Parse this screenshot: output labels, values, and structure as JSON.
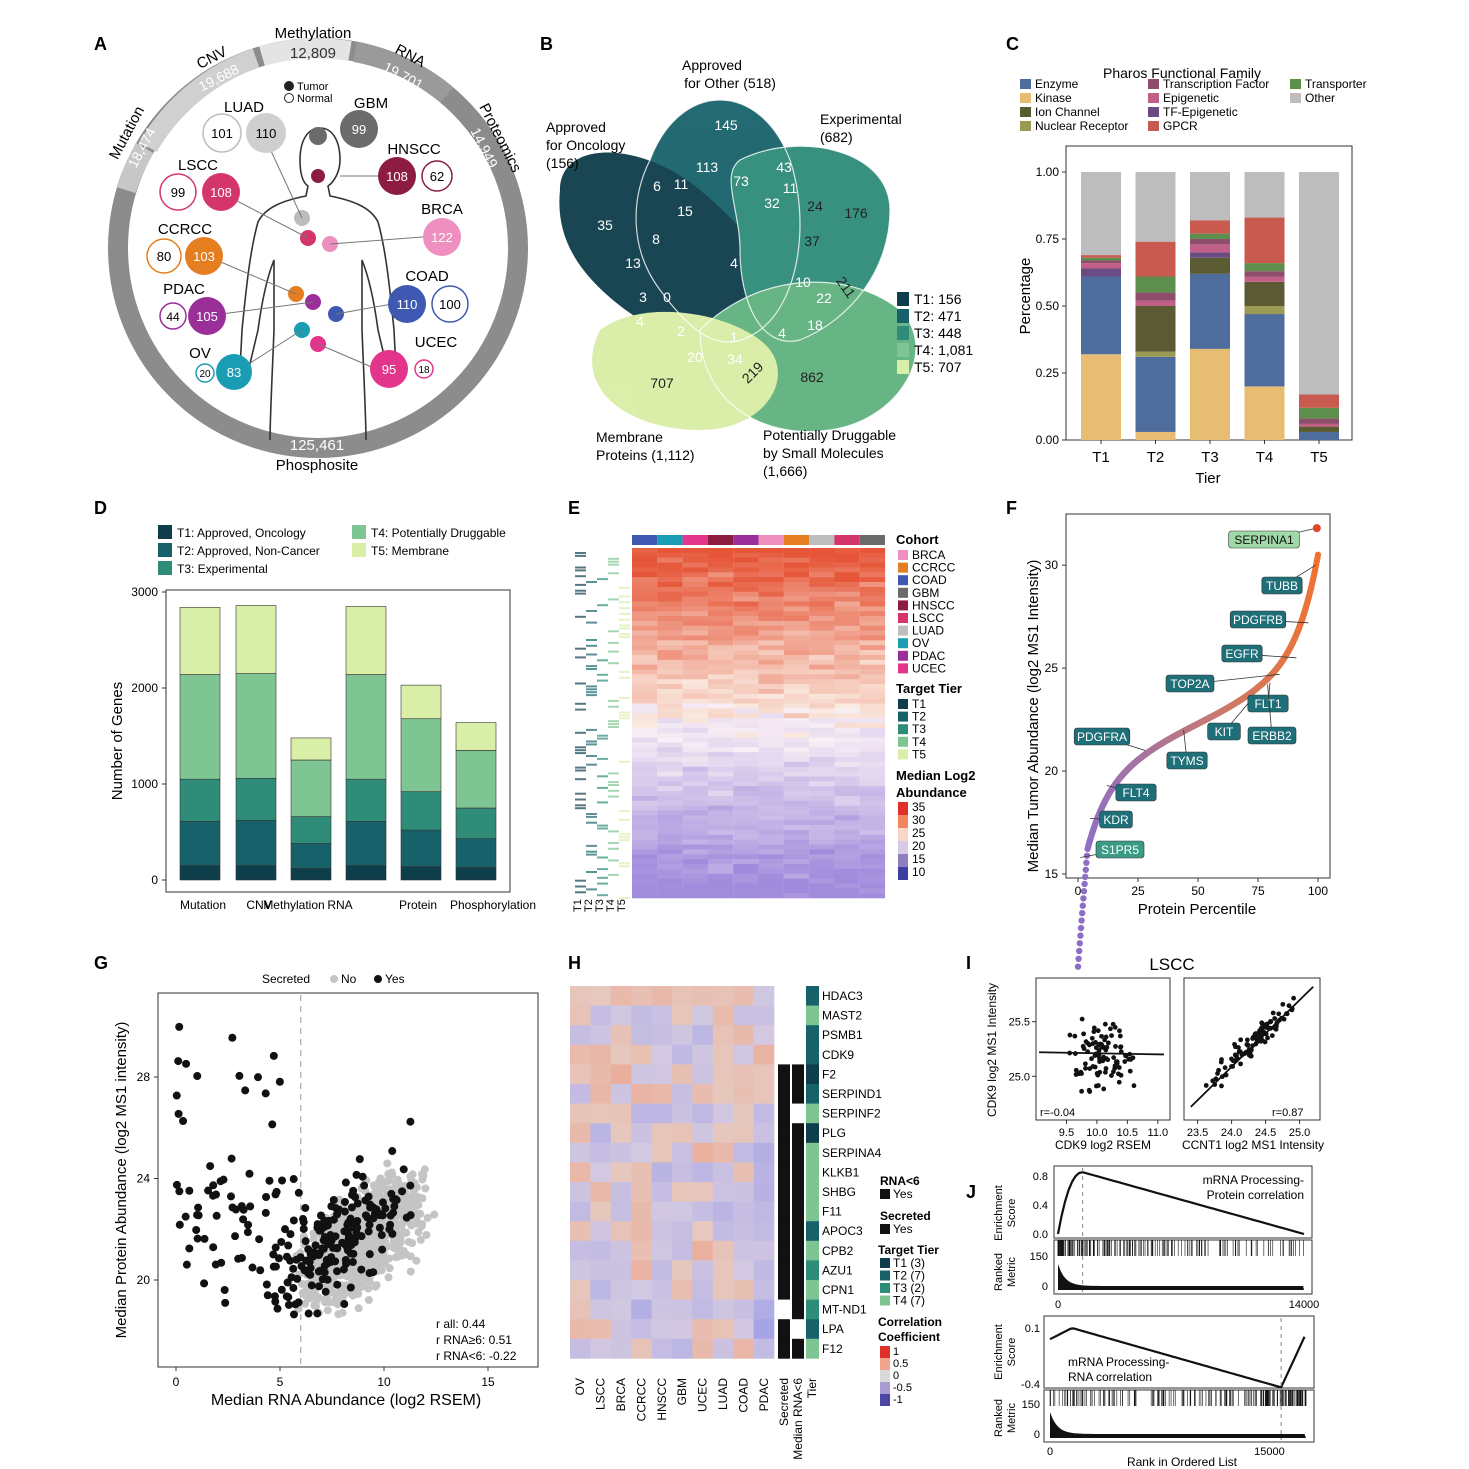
{
  "colors": {
    "T1": "#0e3d4b",
    "T2": "#17626a",
    "T3": "#2e8c78",
    "T4": "#7fc493",
    "T5": "#d9eea6",
    "ring": "#8c8c8c",
    "ringLight": "#cfcfcf",
    "cohort": {
      "BRCA": "#ee8fbf",
      "CCRCC": "#e47e21",
      "COAD": "#3f58b1",
      "GBM": "#6b6b6b",
      "HNSCC": "#8c1d40",
      "LSCC": "#d4366b",
      "LUAD": "#bdbdbd",
      "OV": "#1a9db3",
      "PDAC": "#9a2f9a",
      "UCEC": "#e3358c"
    }
  },
  "panels": {
    "A": {
      "letter": "A",
      "ring_labels": [
        {
          "name": "Methylation",
          "value": "12,809"
        },
        {
          "name": "CNV",
          "value": "19,688"
        },
        {
          "name": "RNA",
          "value": "19,701"
        },
        {
          "name": "Mutation",
          "value": "18,474"
        },
        {
          "name": "Proteomics",
          "value": "14,949"
        },
        {
          "name": "Phosphosite",
          "value": "125,461"
        }
      ],
      "legend": {
        "tumor": "Tumor",
        "normal": "Normal"
      },
      "cohorts": [
        {
          "name": "LUAD",
          "tumor": "110",
          "normal": "101"
        },
        {
          "name": "GBM",
          "tumor": "99",
          "normal": ""
        },
        {
          "name": "HNSCC",
          "tumor": "108",
          "normal": "62"
        },
        {
          "name": "LSCC",
          "tumor": "108",
          "normal": "99"
        },
        {
          "name": "BRCA",
          "tumor": "122",
          "normal": ""
        },
        {
          "name": "CCRCC",
          "tumor": "103",
          "normal": "80"
        },
        {
          "name": "COAD",
          "tumor": "110",
          "normal": "100"
        },
        {
          "name": "PDAC",
          "tumor": "105",
          "normal": "44"
        },
        {
          "name": "UCEC",
          "tumor": "95",
          "normal": "18"
        },
        {
          "name": "OV",
          "tumor": "83",
          "normal": "20"
        }
      ]
    },
    "B": {
      "letter": "B",
      "sets": [
        {
          "label": "Approved",
          "label2": "for Oncology",
          "label3": "(156)"
        },
        {
          "label": "Approved",
          "label2": "for Other (518)"
        },
        {
          "label": "Experimental",
          "label2": "(682)"
        },
        {
          "label": "Potentially Druggable",
          "label2": "by Small Molecules",
          "label3": "(1,666)"
        },
        {
          "label": "Membrane",
          "label2": "Proteins (1,112)"
        }
      ],
      "numbers": [
        "35",
        "145",
        "176",
        "862",
        "707",
        "6",
        "11",
        "113",
        "73",
        "43",
        "11",
        "32",
        "24",
        "15",
        "8",
        "13",
        "4",
        "37",
        "10",
        "22",
        "211",
        "3",
        "0",
        "2",
        "1",
        "4",
        "18",
        "20",
        "34",
        "219"
      ],
      "tiers": [
        "T1: 156",
        "T2: 471",
        "T3: 448",
        "T4: 1,081",
        "T5: 707"
      ]
    },
    "C": {
      "letter": "C",
      "legend_title": "Pharos Functional Family",
      "legend_items": [
        {
          "name": "Enzyme",
          "color": "#4f6d9c"
        },
        {
          "name": "Kinase",
          "color": "#e7bd74"
        },
        {
          "name": "Ion Channel",
          "color": "#5a5a33"
        },
        {
          "name": "Nuclear Receptor",
          "color": "#9b9a55"
        },
        {
          "name": "Transcription Factor",
          "color": "#8e4d6a"
        },
        {
          "name": "Epigenetic",
          "color": "#c25f86"
        },
        {
          "name": "TF-Epigenetic",
          "color": "#6a4b82"
        },
        {
          "name": "GPCR",
          "color": "#c95a4f"
        },
        {
          "name": "Transporter",
          "color": "#5e8e4e"
        },
        {
          "name": "Other",
          "color": "#bdbdbd"
        }
      ]
    },
    "D": {
      "letter": "D",
      "legend": [
        "T1: Approved, Oncology",
        "T2: Approved, Non-Cancer",
        "T3: Experimental",
        "T4: Potentially Druggable",
        "T5: Membrane"
      ]
    },
    "E": {
      "letter": "E",
      "legend_cohort_title": "Cohort",
      "cohorts": [
        "BRCA",
        "CCRCC",
        "COAD",
        "GBM",
        "HNSCC",
        "LSCC",
        "LUAD",
        "OV",
        "PDAC",
        "UCEC"
      ],
      "tier_title": "Target Tier",
      "tiers": [
        "T1",
        "T2",
        "T3",
        "T4",
        "T5"
      ],
      "scale_title": "Median Log2",
      "scale_title2": "Abundance",
      "scale_ticks": [
        "35",
        "30",
        "25",
        "20",
        "15",
        "10"
      ]
    },
    "F": {
      "letter": "F"
    },
    "G": {
      "letter": "G",
      "legend_title": "Secreted",
      "legend_no": "No",
      "legend_yes": "Yes",
      "stats": [
        "r all: 0.44",
        "r RNA≥6: 0.51",
        "r RNA<6: -0.22"
      ]
    },
    "H": {
      "letter": "H",
      "columns": [
        "OV",
        "LSCC",
        "BRCA",
        "CCRCC",
        "HNSCC",
        "GBM",
        "UCEC",
        "LUAD",
        "COAD",
        "PDAC"
      ],
      "side_cols": [
        "Secreted",
        "Median RNA<6",
        "Tier"
      ],
      "genes": [
        "HDAC3",
        "MAST2",
        "PSMB1",
        "CDK9",
        "F2",
        "SERPIND1",
        "SERPINF2",
        "PLG",
        "SERPINA4",
        "KLKB1",
        "SHBG",
        "F11",
        "APOC3",
        "CPB2",
        "AZU1",
        "CPN1",
        "MT-ND1",
        "LPA",
        "F12"
      ],
      "legend_rna": "RNA<6",
      "legend_yes": "Yes",
      "legend_secreted": "Secreted",
      "legend_yes2": "Yes",
      "legend_tier": "Target Tier",
      "tier_counts": [
        "T1 (3)",
        "T2 (7)",
        "T3 (2)",
        "T4 (7)"
      ],
      "corr_title": "Correlation",
      "corr_title2": "Coefficient",
      "corr_ticks": [
        "1",
        "0.5",
        "0",
        "-0.5",
        "-1"
      ]
    },
    "I": {
      "letter": "I",
      "title": "LSCC",
      "r_left": "r=-0.04",
      "r_right": "r=0.87"
    },
    "J": {
      "letter": "J",
      "label_top": "mRNA Processing-",
      "label_top2": "Protein correlation",
      "label_bot": "mRNA Processing-",
      "label_bot2": "RNA correlation",
      "ylab1": "Enrichment",
      "ylab1b": "Score",
      "ylab2": "Ranked",
      "ylab2b": "Metric",
      "xlabel": "Rank in Ordered List"
    }
  },
  "chart_data": [
    {
      "id": "C",
      "type": "bar",
      "title": "Pharos Functional Family",
      "xlabel": "Tier",
      "ylabel": "Percentage",
      "categories": [
        "T1",
        "T2",
        "T3",
        "T4",
        "T5"
      ],
      "ylim": [
        0,
        1
      ],
      "yticks": [
        "0.00",
        "0.25",
        "0.50",
        "0.75",
        "1.00"
      ],
      "series": [
        {
          "name": "Kinase",
          "values": [
            0.32,
            0.03,
            0.34,
            0.2,
            0.0
          ]
        },
        {
          "name": "Enzyme",
          "values": [
            0.29,
            0.28,
            0.28,
            0.27,
            0.03
          ]
        },
        {
          "name": "Nuclear Receptor",
          "values": [
            0.0,
            0.02,
            0.0,
            0.03,
            0.0
          ]
        },
        {
          "name": "Ion Channel",
          "values": [
            0.0,
            0.17,
            0.06,
            0.09,
            0.02
          ]
        },
        {
          "name": "TF-Epigenetic",
          "values": [
            0.03,
            0.0,
            0.02,
            0.0,
            0.0
          ]
        },
        {
          "name": "Epigenetic",
          "values": [
            0.02,
            0.02,
            0.03,
            0.02,
            0.01
          ]
        },
        {
          "name": "Transcription Factor",
          "values": [
            0.01,
            0.03,
            0.02,
            0.02,
            0.02
          ]
        },
        {
          "name": "Transporter",
          "values": [
            0.01,
            0.06,
            0.02,
            0.03,
            0.04
          ]
        },
        {
          "name": "GPCR",
          "values": [
            0.01,
            0.13,
            0.05,
            0.17,
            0.05
          ]
        },
        {
          "name": "Other",
          "values": [
            0.31,
            0.26,
            0.18,
            0.17,
            0.83
          ]
        }
      ]
    },
    {
      "id": "D",
      "type": "bar",
      "xlabel": "",
      "ylabel": "Number of Genes",
      "categories": [
        "Mutation",
        "CNV",
        "Methylation",
        "RNA",
        "Protein",
        "Phosphorylation"
      ],
      "ylim": [
        0,
        3000
      ],
      "yticks": [
        "0",
        "1000",
        "2000",
        "3000"
      ],
      "series": [
        {
          "name": "T1",
          "values": [
            150,
            150,
            120,
            150,
            140,
            130
          ]
        },
        {
          "name": "T2",
          "values": [
            460,
            470,
            260,
            460,
            380,
            300
          ]
        },
        {
          "name": "T3",
          "values": [
            440,
            440,
            280,
            440,
            400,
            320
          ]
        },
        {
          "name": "T4",
          "values": [
            1090,
            1090,
            590,
            1090,
            760,
            600
          ]
        },
        {
          "name": "T5",
          "values": [
            700,
            710,
            230,
            710,
            350,
            290
          ]
        }
      ]
    },
    {
      "id": "F",
      "type": "scatter",
      "xlabel": "Protein Percentile",
      "ylabel": "Median Tumor Abundance (log2 MS1 Intensity)",
      "xlim": [
        0,
        100
      ],
      "ylim": [
        15,
        32
      ],
      "xticks": [
        "0",
        "25",
        "50",
        "75",
        "100"
      ],
      "yticks": [
        "15",
        "20",
        "25",
        "30"
      ],
      "labels": [
        {
          "name": "SERPINA1",
          "x": 99.5,
          "y": 31.8
        },
        {
          "name": "TUBB",
          "x": 99,
          "y": 30
        },
        {
          "name": "PDGFRB",
          "x": 96,
          "y": 27.2
        },
        {
          "name": "EGFR",
          "x": 91,
          "y": 25.5
        },
        {
          "name": "TOP2A",
          "x": 84,
          "y": 24.7
        },
        {
          "name": "FLT1",
          "x": 80,
          "y": 24.3
        },
        {
          "name": "KIT",
          "x": 71,
          "y": 23.3
        },
        {
          "name": "ERBB2",
          "x": 79,
          "y": 24.2
        },
        {
          "name": "TYMS",
          "x": 44,
          "y": 22.0
        },
        {
          "name": "PDGFRA",
          "x": 28,
          "y": 21.0
        },
        {
          "name": "FLT4",
          "x": 12,
          "y": 19.3
        },
        {
          "name": "KDR",
          "x": 5,
          "y": 17.7
        },
        {
          "name": "S1PR5",
          "x": 1,
          "y": 15.8
        }
      ]
    },
    {
      "id": "G",
      "type": "scatter",
      "xlabel": "Median RNA Abundance (log2 RSEM)",
      "ylabel": "Median Protein Abundance (log2 MS1 intensity)",
      "xlim": [
        -0.5,
        16.5
      ],
      "ylim": [
        17.5,
        31.5
      ],
      "xticks": [
        "0",
        "5",
        "10",
        "15"
      ],
      "yticks": [
        "20",
        "24",
        "28"
      ],
      "threshold_x": 6
    },
    {
      "id": "I",
      "type": "scatter",
      "title": "LSCC",
      "panels": [
        {
          "xlabel": "CDK9 log2 RSEM",
          "ylabel": "CDK9 log2 MS1 Intensity",
          "xticks": [
            "9.5",
            "10.0",
            "10.5",
            "11.0"
          ],
          "xlim": [
            9.0,
            11.2
          ],
          "ylim": [
            24.6,
            25.9
          ],
          "yticks": [
            "25.0",
            "25.5"
          ],
          "r": -0.04
        },
        {
          "xlabel": "CCNT1 log2 MS1 Intensity",
          "xticks": [
            "23.5",
            "24.0",
            "24.5",
            "25.0"
          ],
          "xlim": [
            23.3,
            25.3
          ],
          "r": 0.87
        }
      ]
    },
    {
      "id": "J",
      "type": "line",
      "xlabel": "Rank in Ordered List",
      "panels": [
        {
          "name": "mRNA Processing-Protein correlation",
          "xlim": [
            0,
            14000
          ],
          "xticks": [
            "0",
            "14000"
          ],
          "yticks": [
            "0.0",
            "0.4",
            "0.8"
          ],
          "ylim": [
            0,
            0.88
          ],
          "rank_ticks": [
            "0",
            "150"
          ]
        },
        {
          "name": "mRNA Processing-RNA correlation",
          "xlim": [
            0,
            17500
          ],
          "xticks": [
            "0",
            "15000"
          ],
          "yticks": [
            "0.1",
            "-0.4"
          ],
          "ylim": [
            -0.45,
            0.15
          ],
          "rank_ticks": [
            "0",
            "150"
          ]
        }
      ]
    }
  ]
}
